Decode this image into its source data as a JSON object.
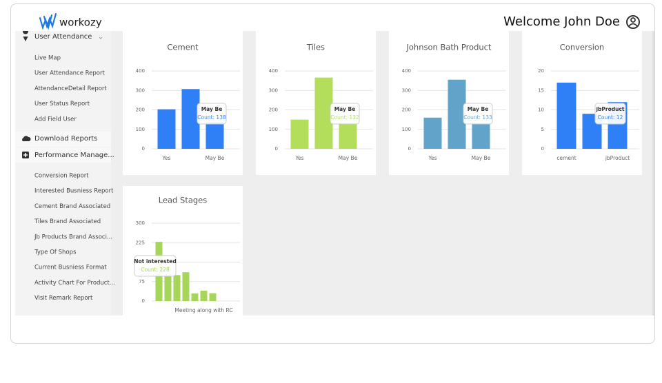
{
  "header": {
    "logo": "workozy",
    "welcome": "Welcome John Doe"
  },
  "sidebar": {
    "sections": [
      {
        "title": "User Attendance",
        "items": [
          "Live Map",
          "User Attendance Report",
          "AttendanceDetail Report",
          "User Status Report",
          "Add Field User"
        ]
      },
      {
        "title": "Download Reports",
        "items": []
      },
      {
        "title": "Performance Manage...",
        "items": [
          "Conversion Report",
          "Interested Busniess Report",
          "Cement Brand Associated",
          "Tiles Brand Associated",
          "Jb Products Brand Associ...",
          "Type Of Shops",
          "Current Busniess Format",
          "Activity Chart For Product...",
          "Visit Remark Report"
        ]
      }
    ]
  },
  "chart_data": [
    {
      "type": "bar",
      "title": "Cement",
      "categories": [
        "Yes",
        null,
        "May Be"
      ],
      "values": [
        203,
        307,
        138
      ],
      "color": "#2f80f7",
      "ylim": [
        0,
        400
      ],
      "yticks": [
        0,
        100,
        200,
        300,
        400
      ],
      "grid": true,
      "tooltip": {
        "title": "May Be",
        "count": "Count: 138"
      }
    },
    {
      "type": "bar",
      "title": "Tiles",
      "categories": [
        "Yes",
        null,
        "May Be"
      ],
      "values": [
        150,
        366,
        132
      ],
      "color": "#b2de5c",
      "ylim": [
        0,
        400
      ],
      "yticks": [
        0,
        100,
        200,
        300,
        400
      ],
      "grid": true,
      "tooltip": {
        "title": "May Be",
        "count": "Count: 132"
      }
    },
    {
      "type": "bar",
      "title": "Johnson Bath Product",
      "categories": [
        "Yes",
        null,
        "May Be"
      ],
      "values": [
        160,
        355,
        133
      ],
      "color": "#62a3c9",
      "ylim": [
        0,
        400
      ],
      "yticks": [
        0,
        100,
        200,
        300,
        400
      ],
      "grid": true,
      "tooltip": {
        "title": "May Be",
        "count": "Count: 133"
      }
    },
    {
      "type": "bar",
      "title": "Conversion",
      "categories": [
        "cement",
        null,
        "jbProduct"
      ],
      "values": [
        17,
        9,
        12
      ],
      "color": "#2f80f7",
      "ylim": [
        0,
        20
      ],
      "yticks": [
        0,
        5,
        10,
        15,
        20
      ],
      "grid": true,
      "tooltip": {
        "title": "jbProduct",
        "count": "Count: 12"
      }
    },
    {
      "type": "bar",
      "title": "Lead Stages",
      "categories": [
        null,
        null,
        null,
        null,
        null,
        "Meeting along with RC",
        null
      ],
      "values": [
        228,
        100,
        100,
        111,
        29,
        40,
        30
      ],
      "color": "#a5d65a",
      "ylim": [
        0,
        300
      ],
      "yticks": [
        0,
        75,
        150,
        225,
        300
      ],
      "grid": true,
      "tooltip": {
        "title": "Not interested",
        "count": "Count: 228"
      }
    }
  ]
}
